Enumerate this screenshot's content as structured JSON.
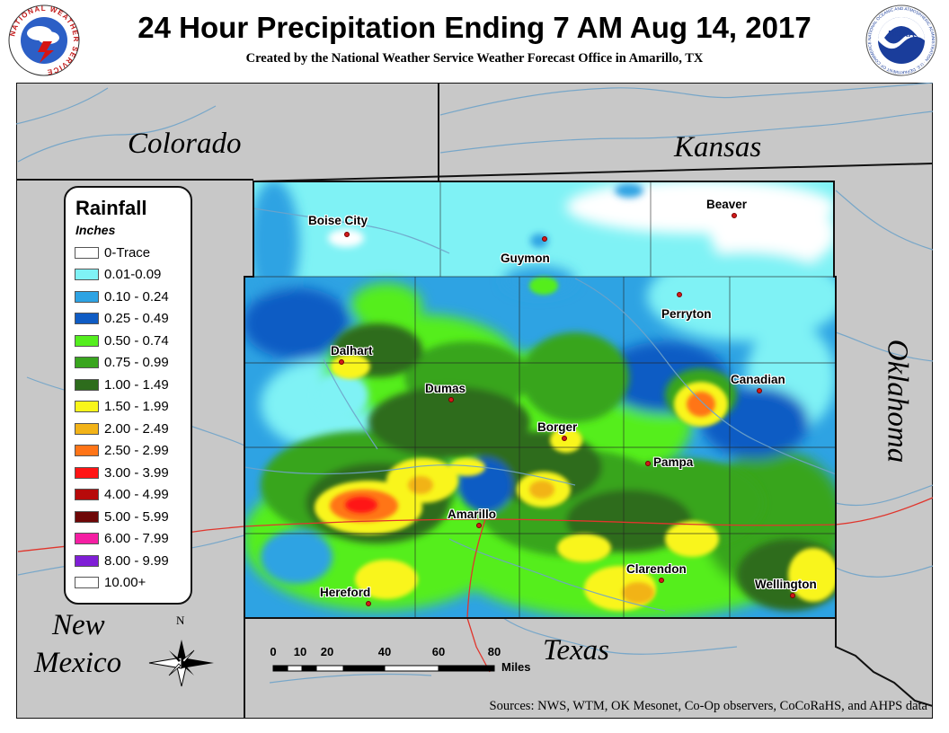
{
  "header": {
    "title": "24 Hour Precipitation Ending 7 AM Aug 14, 2017",
    "subtitle": "Created by the National Weather Service Weather Forecast Office in Amarillo, TX",
    "nws_logo_text": "NATIONAL WEATHER SERVICE",
    "noaa_logo_text": "NOAA",
    "noaa_ring_text": "NATIONAL OCEANIC AND ATMOSPHERIC ADMINISTRATION · U.S. DEPARTMENT OF COMMERCE"
  },
  "legend": {
    "title": "Rainfall",
    "units": "Inches",
    "items": [
      {
        "label": "0-Trace",
        "color": "#ffffff"
      },
      {
        "label": "0.01-0.09",
        "color": "#7ff2f5"
      },
      {
        "label": "0.10 - 0.24",
        "color": "#2ea3e3"
      },
      {
        "label": "0.25 - 0.49",
        "color": "#0f5cc4"
      },
      {
        "label": "0.50 - 0.74",
        "color": "#54ee1e"
      },
      {
        "label": "0.75 - 0.99",
        "color": "#39a51e"
      },
      {
        "label": "1.00 - 1.49",
        "color": "#2d6c1c"
      },
      {
        "label": "1.50 - 1.99",
        "color": "#f9f51a"
      },
      {
        "label": "2.00 - 2.49",
        "color": "#f2b318"
      },
      {
        "label": "2.50 - 2.99",
        "color": "#ff7417"
      },
      {
        "label": "3.00 - 3.99",
        "color": "#ff1414"
      },
      {
        "label": "4.00 - 4.99",
        "color": "#b70a0a"
      },
      {
        "label": "5.00 - 5.99",
        "color": "#6e0707"
      },
      {
        "label": "6.00 - 7.99",
        "color": "#f51fa3"
      },
      {
        "label": "8.00 - 9.99",
        "color": "#7f1ed6"
      },
      {
        "label": "10.00+",
        "color": "#ffffff"
      }
    ]
  },
  "states": {
    "colorado": "Colorado",
    "kansas": "Kansas",
    "oklahoma": "Oklahoma",
    "new_mexico_1": "New",
    "new_mexico_2": "Mexico",
    "texas": "Texas"
  },
  "cities": {
    "boise_city": "Boise City",
    "guymon": "Guymon",
    "beaver": "Beaver",
    "perryton": "Perryton",
    "dalhart": "Dalhart",
    "dumas": "Dumas",
    "canadian": "Canadian",
    "borger": "Borger",
    "pampa": "Pampa",
    "amarillo": "Amarillo",
    "clarendon": "Clarendon",
    "hereford": "Hereford",
    "wellington": "Wellington"
  },
  "scale": {
    "ticks": [
      "0",
      "10",
      "20",
      "40",
      "60",
      "80"
    ],
    "units": "Miles"
  },
  "north_label": "N",
  "sources": "Sources:  NWS, WTM, OK Mesonet, Co-Op observers, CoCoRaHS, and AHPS data",
  "colors": {
    "outside_state": "#c8c8c8",
    "border": "#111111",
    "river": "#6fa3c9",
    "highway": "#e0362d"
  }
}
